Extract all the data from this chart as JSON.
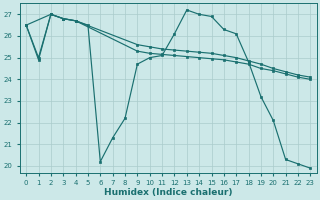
{
  "xlabel": "Humidex (Indice chaleur)",
  "bg_color": "#cce8e8",
  "grid_color": "#aacccc",
  "line_color": "#1a7070",
  "xlim": [
    -0.5,
    23.5
  ],
  "ylim": [
    19.7,
    27.5
  ],
  "yticks": [
    20,
    21,
    22,
    23,
    24,
    25,
    26,
    27
  ],
  "xticks": [
    0,
    1,
    2,
    3,
    4,
    5,
    6,
    7,
    8,
    9,
    10,
    11,
    12,
    13,
    14,
    15,
    16,
    17,
    18,
    19,
    20,
    21,
    22,
    23
  ],
  "line1_x": [
    0,
    1,
    2,
    3,
    4,
    5,
    6,
    7,
    8,
    9,
    10,
    11,
    12,
    13,
    14,
    15,
    16,
    17,
    18,
    19,
    20,
    21,
    22,
    23
  ],
  "line1_y": [
    26.5,
    24.9,
    27.0,
    26.8,
    26.7,
    26.5,
    20.2,
    21.3,
    22.2,
    24.7,
    25.0,
    25.1,
    26.1,
    27.2,
    27.0,
    26.9,
    26.3,
    26.1,
    24.8,
    23.2,
    22.1,
    20.3,
    20.1,
    19.9
  ],
  "line2_x": [
    0,
    2,
    3,
    4,
    9,
    10,
    11,
    12,
    13,
    14,
    15,
    16,
    17,
    18,
    19,
    20,
    21,
    22,
    23
  ],
  "line2_y": [
    26.5,
    27.0,
    26.8,
    26.7,
    25.6,
    25.5,
    25.4,
    25.35,
    25.3,
    25.25,
    25.2,
    25.1,
    25.0,
    24.85,
    24.7,
    24.5,
    24.35,
    24.2,
    24.1
  ],
  "line3_x": [
    0,
    1,
    2,
    3,
    4,
    9,
    10,
    11,
    12,
    13,
    14,
    15,
    16,
    17,
    18,
    19,
    20,
    21,
    22,
    23
  ],
  "line3_y": [
    26.5,
    25.0,
    27.0,
    26.8,
    26.7,
    25.3,
    25.2,
    25.15,
    25.1,
    25.05,
    25.0,
    24.95,
    24.9,
    24.8,
    24.7,
    24.5,
    24.4,
    24.25,
    24.1,
    24.0
  ]
}
